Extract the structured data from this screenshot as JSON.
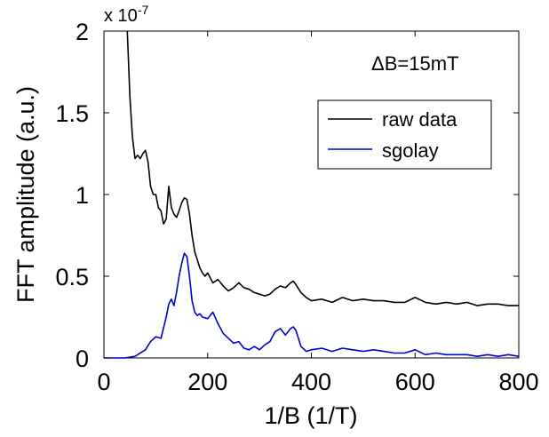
{
  "chart_data": {
    "type": "line",
    "xlabel": "1/B (1/T)",
    "ylabel": "FFT amplitude (a.u.)",
    "y_multiplier_label": "x 10",
    "y_multiplier_exponent": "-7",
    "annotation": "ΔB=15mT",
    "xlim": [
      0,
      800
    ],
    "ylim": [
      0,
      2
    ],
    "xticks": [
      0,
      200,
      400,
      600,
      800
    ],
    "xtick_labels": [
      "0",
      "200",
      "400",
      "600",
      "800"
    ],
    "yticks": [
      0,
      0.5,
      1,
      1.5,
      2
    ],
    "ytick_labels": [
      "0",
      "0.5",
      "1",
      "1.5",
      "2"
    ],
    "grid": false,
    "legend_position": "top-right",
    "colors": {
      "raw data": "#000000",
      "sgolay": "#0000cc"
    },
    "series": [
      {
        "name": "raw data",
        "x": [
          45,
          50,
          55,
          60,
          65,
          70,
          75,
          80,
          85,
          90,
          95,
          100,
          105,
          110,
          115,
          120,
          125,
          130,
          135,
          140,
          145,
          150,
          155,
          160,
          165,
          170,
          175,
          180,
          185,
          190,
          195,
          200,
          210,
          220,
          230,
          240,
          250,
          260,
          270,
          280,
          290,
          300,
          310,
          320,
          330,
          340,
          350,
          360,
          365,
          370,
          380,
          390,
          400,
          420,
          440,
          460,
          480,
          500,
          520,
          540,
          560,
          580,
          600,
          620,
          640,
          660,
          680,
          700,
          720,
          740,
          760,
          780,
          800
        ],
        "y": [
          2.0,
          1.6,
          1.35,
          1.22,
          1.24,
          1.22,
          1.25,
          1.27,
          1.2,
          1.05,
          1.0,
          1.0,
          0.92,
          0.9,
          0.82,
          0.85,
          1.05,
          0.92,
          0.88,
          0.86,
          0.9,
          0.95,
          0.98,
          0.97,
          0.88,
          0.75,
          0.65,
          0.6,
          0.55,
          0.52,
          0.5,
          0.52,
          0.46,
          0.48,
          0.44,
          0.41,
          0.43,
          0.46,
          0.43,
          0.42,
          0.4,
          0.39,
          0.38,
          0.39,
          0.42,
          0.44,
          0.43,
          0.46,
          0.47,
          0.45,
          0.4,
          0.37,
          0.35,
          0.36,
          0.34,
          0.37,
          0.35,
          0.36,
          0.35,
          0.35,
          0.34,
          0.34,
          0.37,
          0.34,
          0.33,
          0.34,
          0.33,
          0.34,
          0.32,
          0.33,
          0.33,
          0.32,
          0.32
        ]
      },
      {
        "name": "sgolay",
        "x": [
          0,
          40,
          60,
          80,
          90,
          100,
          110,
          120,
          125,
          130,
          135,
          140,
          145,
          150,
          155,
          160,
          165,
          170,
          175,
          180,
          185,
          190,
          200,
          210,
          220,
          230,
          240,
          250,
          260,
          270,
          280,
          290,
          300,
          310,
          320,
          330,
          340,
          350,
          360,
          365,
          370,
          380,
          390,
          400,
          420,
          440,
          460,
          480,
          500,
          520,
          540,
          560,
          580,
          600,
          620,
          640,
          660,
          680,
          700,
          720,
          740,
          760,
          780,
          800
        ],
        "y": [
          0,
          0,
          0.01,
          0.05,
          0.1,
          0.13,
          0.12,
          0.25,
          0.33,
          0.36,
          0.32,
          0.4,
          0.5,
          0.58,
          0.64,
          0.62,
          0.5,
          0.35,
          0.28,
          0.26,
          0.27,
          0.25,
          0.24,
          0.28,
          0.21,
          0.15,
          0.12,
          0.09,
          0.1,
          0.06,
          0.05,
          0.07,
          0.05,
          0.08,
          0.1,
          0.16,
          0.18,
          0.14,
          0.18,
          0.19,
          0.17,
          0.07,
          0.04,
          0.05,
          0.06,
          0.04,
          0.06,
          0.05,
          0.04,
          0.05,
          0.04,
          0.03,
          0.03,
          0.05,
          0.02,
          0.03,
          0.02,
          0.02,
          0.02,
          0.01,
          0.02,
          0.01,
          0.02,
          0.01
        ]
      }
    ]
  }
}
